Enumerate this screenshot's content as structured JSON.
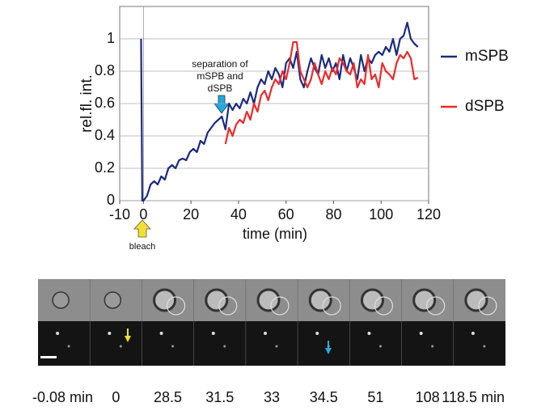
{
  "chart_data": {
    "type": "line",
    "ylabel": "rel.fl. int.",
    "xlabel": "time (min)",
    "xlim": [
      -10,
      120
    ],
    "xticks": [
      -10,
      0,
      20,
      40,
      60,
      80,
      100,
      120
    ],
    "ylim": [
      0,
      1.2
    ],
    "yticks": [
      0,
      0.2,
      0.4,
      0.6,
      0.8,
      1
    ],
    "grid": true,
    "annotations": {
      "separation": [
        "separation of",
        "mSPB and",
        "dSPB"
      ],
      "bleach": "bleach"
    },
    "series": [
      {
        "name": "mSPB",
        "color": "#1c2a80",
        "x": [
          -1,
          -0.5,
          0,
          1.5,
          3,
          4.5,
          6,
          7.5,
          9,
          10.5,
          12,
          13.5,
          15,
          16.5,
          18,
          19.5,
          21,
          22.5,
          24,
          25.5,
          27,
          28.5,
          30,
          31.5,
          33,
          34.5,
          36,
          37.5,
          39,
          40.5,
          42,
          43.5,
          45,
          46.5,
          48,
          49.5,
          51,
          52.5,
          54,
          55.5,
          57,
          58.5,
          60,
          61.5,
          63,
          64.5,
          66,
          67.5,
          69,
          70.5,
          72,
          73.5,
          75,
          76.5,
          78,
          79.5,
          81,
          82.5,
          84,
          85.5,
          87,
          88.5,
          90,
          91.5,
          93,
          94.5,
          96,
          97.5,
          99,
          100.5,
          102,
          103.5,
          105,
          106.5,
          108,
          109.5,
          111,
          112.5,
          114,
          115.5
        ],
        "values": [
          1.0,
          0,
          0,
          0.03,
          0.1,
          0.12,
          0.1,
          0.15,
          0.13,
          0.2,
          0.22,
          0.2,
          0.25,
          0.26,
          0.25,
          0.3,
          0.32,
          0.3,
          0.37,
          0.35,
          0.42,
          0.45,
          0.48,
          0.5,
          0.52,
          0.44,
          0.6,
          0.56,
          0.6,
          0.57,
          0.63,
          0.6,
          0.67,
          0.6,
          0.7,
          0.75,
          0.72,
          0.8,
          0.75,
          0.82,
          0.78,
          0.7,
          0.85,
          0.88,
          0.82,
          0.92,
          0.75,
          0.7,
          0.8,
          0.88,
          0.82,
          0.78,
          0.9,
          0.82,
          0.88,
          0.8,
          0.85,
          0.75,
          0.9,
          0.8,
          0.88,
          0.82,
          0.75,
          0.9,
          0.8,
          0.88,
          0.85,
          0.9,
          0.92,
          0.9,
          0.95,
          0.92,
          1.0,
          0.9,
          1.0,
          1.02,
          1.1,
          1.0,
          0.97,
          0.95
        ]
      },
      {
        "name": "dSPB",
        "color": "#ee2a2a",
        "x": [
          34.5,
          36,
          37.5,
          39,
          40.5,
          42,
          43.5,
          45,
          46.5,
          48,
          49.5,
          51,
          52.5,
          54,
          55.5,
          57,
          58.5,
          60,
          61.5,
          63,
          64.5,
          66,
          67.5,
          69,
          70.5,
          72,
          73.5,
          75,
          76.5,
          78,
          79.5,
          81,
          82.5,
          84,
          85.5,
          87,
          88.5,
          90,
          91.5,
          93,
          94.5,
          96,
          97.5,
          99,
          100.5,
          102,
          103.5,
          105,
          106.5,
          108,
          109.5,
          111,
          112.5,
          114,
          115.5
        ],
        "values": [
          0.35,
          0.45,
          0.4,
          0.47,
          0.5,
          0.48,
          0.55,
          0.5,
          0.6,
          0.55,
          0.65,
          0.68,
          0.62,
          0.7,
          0.75,
          0.72,
          0.8,
          0.75,
          0.85,
          0.98,
          0.98,
          0.8,
          0.75,
          0.7,
          0.75,
          0.85,
          0.78,
          0.72,
          0.8,
          0.75,
          0.82,
          0.78,
          0.88,
          0.85,
          0.8,
          0.78,
          0.85,
          0.7,
          0.75,
          0.72,
          0.9,
          0.75,
          0.78,
          0.7,
          0.85,
          0.8,
          0.78,
          0.75,
          0.85,
          0.9,
          0.88,
          0.92,
          0.88,
          0.75,
          0.76
        ]
      }
    ]
  },
  "image_panel": {
    "labels": [
      "-0.08 min",
      "0",
      "28.5",
      "31.5",
      "33",
      "34.5",
      "51",
      "108",
      "118.5 min"
    ]
  }
}
